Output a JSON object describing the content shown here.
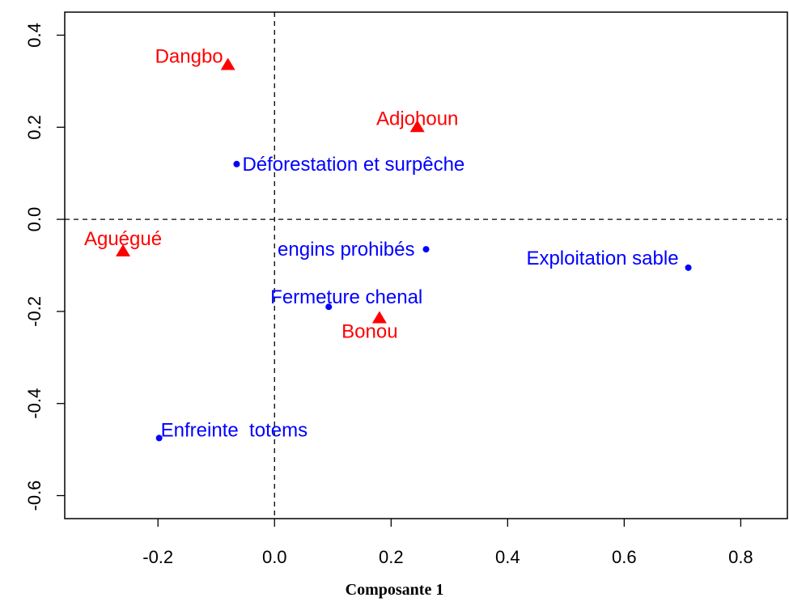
{
  "chart_data": {
    "type": "scatter",
    "title": "",
    "xlabel": "Composante 1",
    "ylabel": "",
    "xlim": [
      -0.36,
      0.88
    ],
    "ylim": [
      -0.65,
      0.45
    ],
    "grid": false,
    "reference_lines": {
      "x": 0,
      "y": 0,
      "style": "dashed"
    },
    "x_ticks": [
      -0.2,
      0.0,
      0.2,
      0.4,
      0.6,
      0.8
    ],
    "x_tick_labels": [
      "-0.2",
      "0.0",
      "0.2",
      "0.4",
      "0.6",
      "0.8"
    ],
    "y_ticks": [
      -0.6,
      -0.4,
      -0.2,
      0.0,
      0.2,
      0.4
    ],
    "y_tick_labels": [
      "-0.6",
      "-0.4",
      "-0.2",
      "0.0",
      "0.2",
      "0.4"
    ],
    "series": [
      {
        "marker": "triangle",
        "color": "#ff0000",
        "points": [
          {
            "label": "Dangbo",
            "x": -0.08,
            "y": 0.335
          },
          {
            "label": "Adjohoun",
            "x": 0.245,
            "y": 0.2
          },
          {
            "label": "Aguégué",
            "x": -0.26,
            "y": -0.07
          },
          {
            "label": "Bonou",
            "x": 0.18,
            "y": -0.215
          }
        ]
      },
      {
        "marker": "dot",
        "color": "#0000ff",
        "points": [
          {
            "label": "Déforestation et surpêche",
            "x": -0.065,
            "y": 0.12
          },
          {
            "label": "engins prohibés",
            "x": 0.26,
            "y": -0.065
          },
          {
            "label": "Exploitation sable",
            "x": 0.71,
            "y": -0.105
          },
          {
            "label": "Fermeture chenal",
            "x": 0.093,
            "y": -0.19
          },
          {
            "label": "Enfreinte  totems",
            "x": -0.198,
            "y": -0.475
          }
        ]
      }
    ]
  }
}
